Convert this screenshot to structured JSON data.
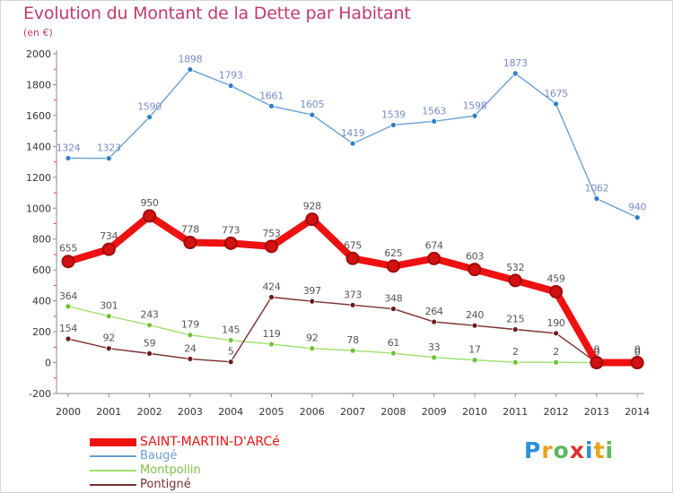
{
  "header": {
    "title": "Evolution du Montant de la Dette par Habitant",
    "subtitle": "(en €)"
  },
  "colors": {
    "title": "#c13b6a",
    "grid_tick": "#e33c5e",
    "axis_text": "#333333",
    "label_text": "#555555"
  },
  "logo": {
    "letters": [
      "P",
      "r",
      "o",
      "x",
      "i",
      "t",
      "i"
    ],
    "colors": [
      "#2e8fd6",
      "#e8a21a",
      "#5cb85c",
      "#d9332d",
      "#2e8fd6",
      "#e8a21a",
      "#5cb85c"
    ]
  },
  "chart_data": {
    "type": "line",
    "title": "Evolution du Montant de la Dette par Habitant",
    "subtitle": "(en €)",
    "xlabel": "",
    "ylabel": "",
    "ylim": [
      -200,
      2000
    ],
    "yticks": [
      -200,
      0,
      200,
      400,
      600,
      800,
      1000,
      1200,
      1400,
      1600,
      1800,
      2000
    ],
    "grid": false,
    "legend_position": "bottom-left",
    "categories": [
      "2000",
      "2001",
      "2002",
      "2003",
      "2004",
      "2005",
      "2006",
      "2007",
      "2008",
      "2009",
      "2010",
      "2011",
      "2012",
      "2013",
      "2014"
    ],
    "series": [
      {
        "name": "Baugé",
        "color": "#6a9fd4",
        "marker": "#2e7fc6",
        "labelColor": "#7c8cc8",
        "values": [
          1324,
          1323,
          1590,
          1898,
          1793,
          1661,
          1605,
          1419,
          1539,
          1563,
          1598,
          1873,
          1675,
          1062,
          940
        ]
      },
      {
        "name": "Montpollin",
        "color": "#9ee06a",
        "marker": "#6bc42e",
        "labelColor": "#555555",
        "values": [
          364,
          301,
          243,
          179,
          145,
          119,
          92,
          78,
          61,
          33,
          17,
          2,
          2,
          0,
          0
        ]
      },
      {
        "name": "Pontigné",
        "color": "#7a2e2e",
        "marker": "#6e1a1a",
        "labelColor": "#555555",
        "values": [
          154,
          92,
          59,
          24,
          5,
          424,
          397,
          373,
          348,
          264,
          240,
          215,
          190,
          0,
          0
        ]
      },
      {
        "name": "SAINT-MARTIN-D'ARCé",
        "color": "#ee1111",
        "marker": "#d41010",
        "labelColor": "#555555",
        "values": [
          655,
          734,
          950,
          778,
          773,
          753,
          928,
          675,
          625,
          674,
          603,
          532,
          459,
          0,
          0
        ]
      }
    ],
    "legend": [
      {
        "name": "SAINT-MARTIN-D'ARCé",
        "color": "#ee1111"
      },
      {
        "name": "Baugé",
        "color": "#6a9fd4"
      },
      {
        "name": "Montpollin",
        "color": "#9ee06a"
      },
      {
        "name": "Pontigné",
        "color": "#7a2e2e"
      }
    ]
  }
}
